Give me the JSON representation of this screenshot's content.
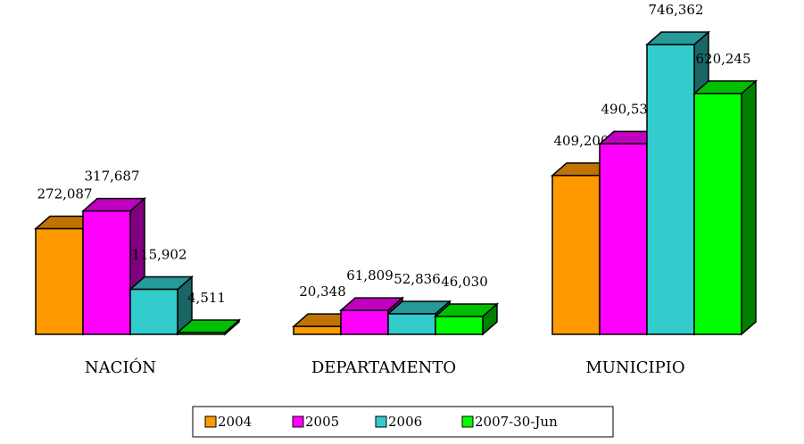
{
  "chart_data": {
    "type": "bar3d",
    "categories": [
      "NACIÓN",
      "DEPARTAMENTO",
      "MUNICIPIO"
    ],
    "series": [
      {
        "name": "2004",
        "color": "#ff9900",
        "values": [
          272087,
          20348,
          409200
        ],
        "value_labels": [
          "272,087",
          "20,348",
          "409,200"
        ]
      },
      {
        "name": "2005",
        "color": "#ff00ff",
        "values": [
          317687,
          61809,
          490532
        ],
        "value_labels": [
          "317,687",
          "61,809",
          "490,532"
        ]
      },
      {
        "name": "2006",
        "color": "#33cccc",
        "values": [
          115902,
          52836,
          746362
        ],
        "value_labels": [
          "115,902",
          "52,836",
          "746,362"
        ]
      },
      {
        "name": "2007-30-Jun",
        "color": "#00ff00",
        "values": [
          4511,
          46030,
          620245
        ],
        "value_labels": [
          "4,511",
          "46,030",
          "620,245"
        ]
      }
    ]
  }
}
